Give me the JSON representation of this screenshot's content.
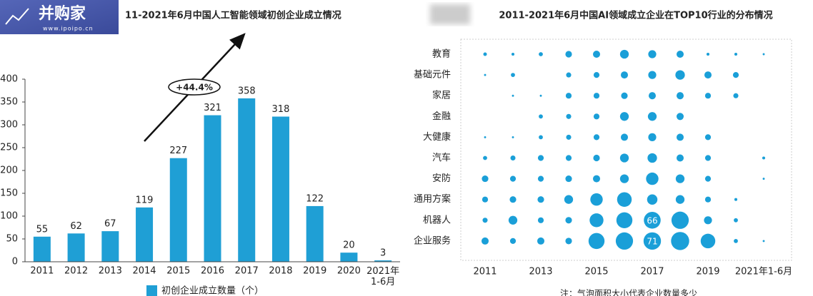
{
  "logo": {
    "name": "并购家",
    "url": "www.ipoipo.cn"
  },
  "chart_data": [
    {
      "type": "bar",
      "title": "11-2021年6月中国人工智能领域初创企业成立情况",
      "categories": [
        "2011",
        "2012",
        "2013",
        "2014",
        "2015",
        "2016",
        "2017",
        "2018",
        "2019",
        "2020",
        "2021年\n1-6月"
      ],
      "series": [
        {
          "name": "初创企业成立数量（个）",
          "color": "#1f9fd5",
          "values": [
            55,
            62,
            67,
            119,
            227,
            321,
            358,
            318,
            122,
            20,
            3
          ]
        }
      ],
      "ylim": [
        0,
        400
      ],
      "yticks": [
        0,
        50,
        100,
        150,
        200,
        250,
        300,
        350,
        400
      ],
      "annotation": "+44.4%"
    },
    {
      "type": "bubble",
      "title": "2011-2021年6月中国AI领域成立企业在TOP10行业的分布情况",
      "x": [
        "2011",
        null,
        "2013",
        null,
        "2015",
        null,
        "2017",
        null,
        "2019",
        null,
        "2021年1-6月"
      ],
      "categories": [
        "教育",
        "基础元件",
        "家居",
        "金融",
        "大健康",
        "汽车",
        "安防",
        "通用方案",
        "机器人",
        "企业服务"
      ],
      "color": "#1a9fd8",
      "values": [
        [
          3,
          2,
          4,
          10,
          12,
          18,
          15,
          12,
          2,
          2,
          1
        ],
        [
          1,
          4,
          null,
          6,
          8,
          12,
          15,
          21,
          12,
          8,
          null
        ],
        [
          null,
          1,
          1,
          8,
          8,
          10,
          12,
          12,
          8,
          6,
          null
        ],
        [
          null,
          null,
          4,
          6,
          8,
          18,
          18,
          12,
          null,
          null,
          null
        ],
        [
          1,
          1,
          4,
          6,
          8,
          12,
          15,
          12,
          8,
          null,
          null
        ],
        [
          4,
          6,
          8,
          8,
          10,
          18,
          21,
          12,
          8,
          null,
          2
        ],
        [
          10,
          8,
          8,
          10,
          12,
          18,
          36,
          18,
          8,
          null,
          1
        ],
        [
          8,
          10,
          10,
          18,
          36,
          50,
          25,
          18,
          8,
          2,
          null
        ],
        [
          6,
          18,
          8,
          10,
          45,
          60,
          66,
          70,
          15,
          4,
          null
        ],
        [
          12,
          8,
          12,
          10,
          60,
          70,
          71,
          77,
          50,
          4,
          1
        ]
      ],
      "value_labels": [
        [
          null,
          null,
          null,
          null,
          null,
          null,
          null,
          null,
          null,
          null,
          null
        ],
        [
          null,
          null,
          null,
          null,
          null,
          null,
          null,
          null,
          null,
          null,
          null
        ],
        [
          null,
          null,
          null,
          null,
          null,
          null,
          null,
          null,
          null,
          null,
          null
        ],
        [
          null,
          null,
          null,
          null,
          null,
          null,
          null,
          null,
          null,
          null,
          null
        ],
        [
          null,
          null,
          null,
          null,
          null,
          null,
          null,
          null,
          null,
          null,
          null
        ],
        [
          null,
          null,
          null,
          null,
          null,
          null,
          null,
          null,
          null,
          null,
          null
        ],
        [
          null,
          null,
          null,
          null,
          null,
          null,
          null,
          null,
          null,
          null,
          null
        ],
        [
          null,
          null,
          null,
          null,
          null,
          null,
          null,
          null,
          null,
          null,
          null
        ],
        [
          null,
          null,
          null,
          null,
          null,
          null,
          "66",
          null,
          null,
          null,
          null
        ],
        [
          null,
          null,
          null,
          null,
          null,
          null,
          "71",
          null,
          null,
          null,
          null
        ]
      ],
      "note": "注：气泡面积大小代表企业数量多少"
    }
  ]
}
